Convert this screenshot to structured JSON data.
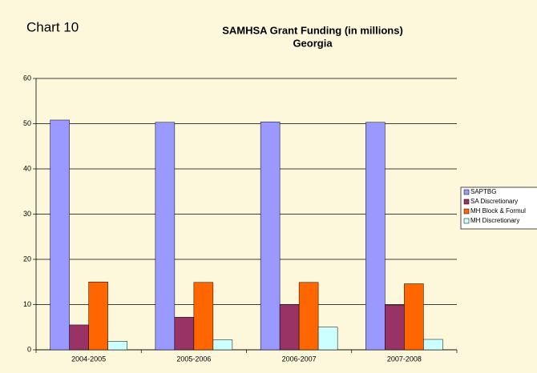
{
  "chart_data": {
    "type": "bar",
    "label": "Chart 10",
    "title": "SAMHSA Grant Funding (in millions)",
    "subtitle": "Georgia",
    "categories": [
      "2004-2005",
      "2005-2006",
      "2006-2007",
      "2007-2008"
    ],
    "series": [
      {
        "name": "SAPTBG",
        "color": "#9999ff",
        "values": [
          50.8,
          50.3,
          50.4,
          50.3
        ]
      },
      {
        "name": "SA Discretionary",
        "color": "#993366",
        "values": [
          5.5,
          7.2,
          10,
          9.9
        ]
      },
      {
        "name": "MH Block & Formul",
        "color": "#ff6600",
        "values": [
          15,
          14.9,
          14.9,
          14.6
        ]
      },
      {
        "name": "MH Discretionary",
        "color": "#ccffff",
        "values": [
          1.9,
          2.2,
          5,
          2.3
        ]
      }
    ],
    "ylim": [
      0,
      60
    ],
    "yticks": [
      0,
      10,
      20,
      30,
      40,
      50,
      60
    ],
    "grid": true
  }
}
